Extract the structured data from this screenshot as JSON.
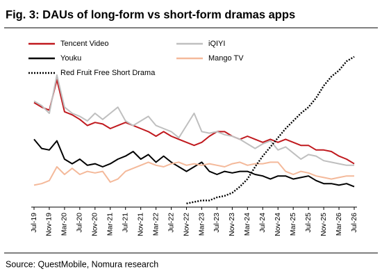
{
  "chart_data": {
    "type": "line",
    "title": "Fig. 3: DAUs of long-form vs short-form dramas apps",
    "source": "Source: QuestMobile, Nomura research",
    "categories": [
      "Jul-19",
      null,
      "Nov-19",
      null,
      "Mar-20",
      null,
      "Jul-20",
      null,
      "Nov-20",
      null,
      "Mar-21",
      null,
      "Jul-21",
      null,
      "Nov-21",
      null,
      "Mar-22",
      null,
      "Jul-22",
      null,
      "Nov-22",
      null,
      "Mar-23",
      null,
      "Jul-23",
      null,
      "Nov-23",
      null,
      "Mar-24",
      null,
      "Jul-24",
      null,
      "Nov-24",
      null,
      "Mar-25",
      null,
      "Jul-25",
      null,
      "Nov-25",
      null,
      "Mar-26",
      null,
      "Jul-26"
    ],
    "ylim": [
      0,
      100
    ],
    "series": [
      {
        "name": "Tencent Video",
        "color": "#c0191e",
        "style": "solid",
        "values": [
          67,
          64,
          62,
          82,
          61,
          59,
          56,
          52,
          54,
          53,
          50,
          52,
          54,
          52,
          50,
          48,
          45,
          48,
          45,
          43,
          41,
          39,
          41,
          45,
          48,
          48,
          45,
          43,
          45,
          43,
          41,
          43,
          41,
          43,
          41,
          39,
          39,
          36,
          36,
          35,
          32,
          30,
          27
        ]
      },
      {
        "name": "iQIYI",
        "color": "#bfbfbf",
        "style": "solid",
        "values": [
          68,
          65,
          60,
          85,
          64,
          60,
          58,
          55,
          60,
          56,
          60,
          64,
          55,
          52,
          55,
          58,
          52,
          50,
          48,
          44,
          52,
          60,
          48,
          47,
          48,
          46,
          45,
          43,
          40,
          37,
          40,
          42,
          36,
          38,
          34,
          30,
          33,
          32,
          29,
          28,
          27,
          26,
          26
        ]
      },
      {
        "name": "Youku",
        "color": "#000000",
        "style": "solid",
        "values": [
          43,
          37,
          36,
          42,
          30,
          27,
          30,
          26,
          27,
          25,
          27,
          30,
          32,
          35,
          30,
          33,
          28,
          32,
          28,
          25,
          22,
          25,
          28,
          22,
          20,
          22,
          21,
          22,
          22,
          20,
          19,
          17,
          19,
          19,
          17,
          18,
          19,
          16,
          14,
          14,
          13,
          14,
          12
        ]
      },
      {
        "name": "Mango TV",
        "color": "#f4b99a",
        "style": "solid",
        "values": [
          13,
          14,
          16,
          25,
          20,
          24,
          20,
          22,
          21,
          22,
          15,
          17,
          22,
          24,
          26,
          28,
          26,
          25,
          27,
          28,
          26,
          27,
          26,
          27,
          26,
          25,
          27,
          28,
          26,
          27,
          27,
          28,
          28,
          22,
          20,
          22,
          21,
          19,
          18,
          17,
          18,
          19,
          19
        ]
      },
      {
        "name": "Red Fruit Free Short Drama",
        "color": "#000000",
        "style": "dotted",
        "values": [
          null,
          null,
          null,
          null,
          null,
          null,
          null,
          null,
          null,
          null,
          null,
          null,
          null,
          null,
          null,
          null,
          null,
          null,
          null,
          null,
          1,
          2,
          3,
          3,
          5,
          6,
          8,
          12,
          17,
          25,
          32,
          38,
          44,
          50,
          55,
          60,
          64,
          70,
          78,
          84,
          88,
          94,
          97
        ]
      }
    ]
  }
}
